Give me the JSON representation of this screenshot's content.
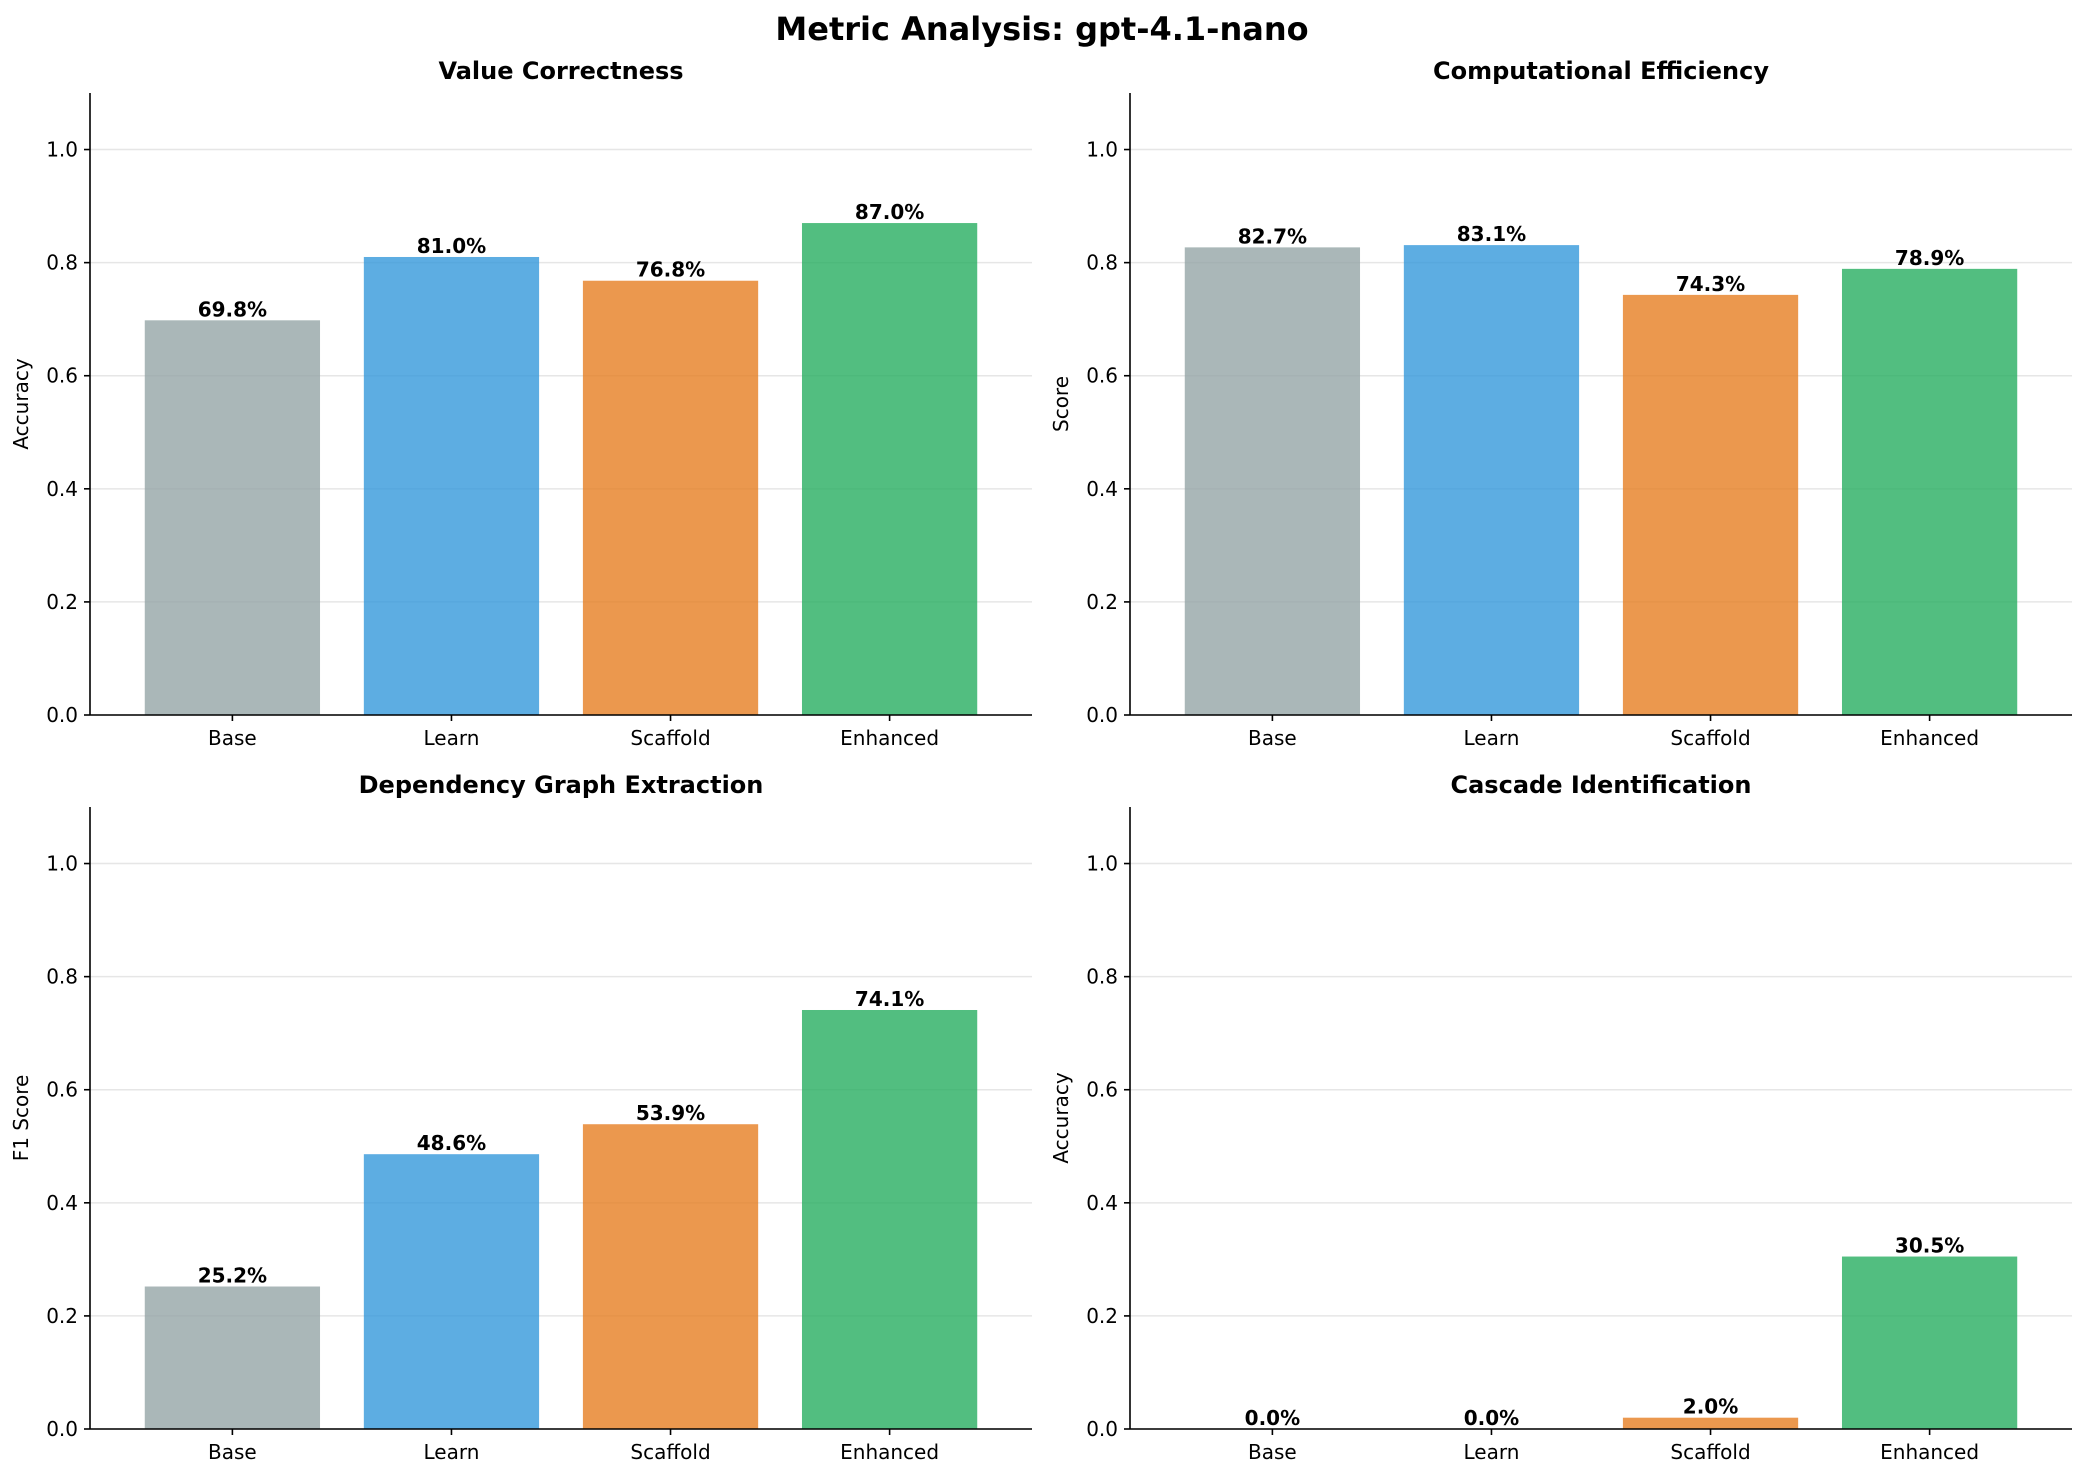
{
  "figure": {
    "title": "Metric Analysis: gpt-4.1-nano"
  },
  "colors": {
    "Base": "#95a5a6",
    "Learn": "#3498db",
    "Scaffold": "#e67e22",
    "Enhanced": "#27ae60"
  },
  "chart_data": [
    {
      "type": "bar",
      "title": "Value Correctness",
      "xlabel": "",
      "ylabel": "Accuracy",
      "categories": [
        "Base",
        "Learn",
        "Scaffold",
        "Enhanced"
      ],
      "values": [
        0.698,
        0.81,
        0.768,
        0.87
      ],
      "labels": [
        "69.8%",
        "81.0%",
        "76.8%",
        "87.0%"
      ],
      "ylim": [
        0,
        1.1
      ],
      "yticks": [
        0.0,
        0.2,
        0.4,
        0.6,
        0.8,
        1.0
      ],
      "ytick_labels": [
        "0.0",
        "0.2",
        "0.4",
        "0.6",
        "0.8",
        "1.0"
      ],
      "grid": "y"
    },
    {
      "type": "bar",
      "title": "Computational Efficiency",
      "xlabel": "",
      "ylabel": "Score",
      "categories": [
        "Base",
        "Learn",
        "Scaffold",
        "Enhanced"
      ],
      "values": [
        0.827,
        0.831,
        0.743,
        0.789
      ],
      "labels": [
        "82.7%",
        "83.1%",
        "74.3%",
        "78.9%"
      ],
      "ylim": [
        0,
        1.1
      ],
      "yticks": [
        0.0,
        0.2,
        0.4,
        0.6,
        0.8,
        1.0
      ],
      "ytick_labels": [
        "0.0",
        "0.2",
        "0.4",
        "0.6",
        "0.8",
        "1.0"
      ],
      "grid": "y"
    },
    {
      "type": "bar",
      "title": "Dependency Graph Extraction",
      "xlabel": "",
      "ylabel": "F1 Score",
      "categories": [
        "Base",
        "Learn",
        "Scaffold",
        "Enhanced"
      ],
      "values": [
        0.252,
        0.486,
        0.539,
        0.741
      ],
      "labels": [
        "25.2%",
        "48.6%",
        "53.9%",
        "74.1%"
      ],
      "ylim": [
        0,
        1.1
      ],
      "yticks": [
        0.0,
        0.2,
        0.4,
        0.6,
        0.8,
        1.0
      ],
      "ytick_labels": [
        "0.0",
        "0.2",
        "0.4",
        "0.6",
        "0.8",
        "1.0"
      ],
      "grid": "y"
    },
    {
      "type": "bar",
      "title": "Cascade Identification",
      "xlabel": "",
      "ylabel": "Accuracy",
      "categories": [
        "Base",
        "Learn",
        "Scaffold",
        "Enhanced"
      ],
      "values": [
        0.0,
        0.0,
        0.02,
        0.305
      ],
      "labels": [
        "0.0%",
        "0.0%",
        "2.0%",
        "30.5%"
      ],
      "ylim": [
        0,
        1.1
      ],
      "yticks": [
        0.0,
        0.2,
        0.4,
        0.6,
        0.8,
        1.0
      ],
      "ytick_labels": [
        "0.0",
        "0.2",
        "0.4",
        "0.6",
        "0.8",
        "1.0"
      ],
      "grid": "y"
    }
  ]
}
